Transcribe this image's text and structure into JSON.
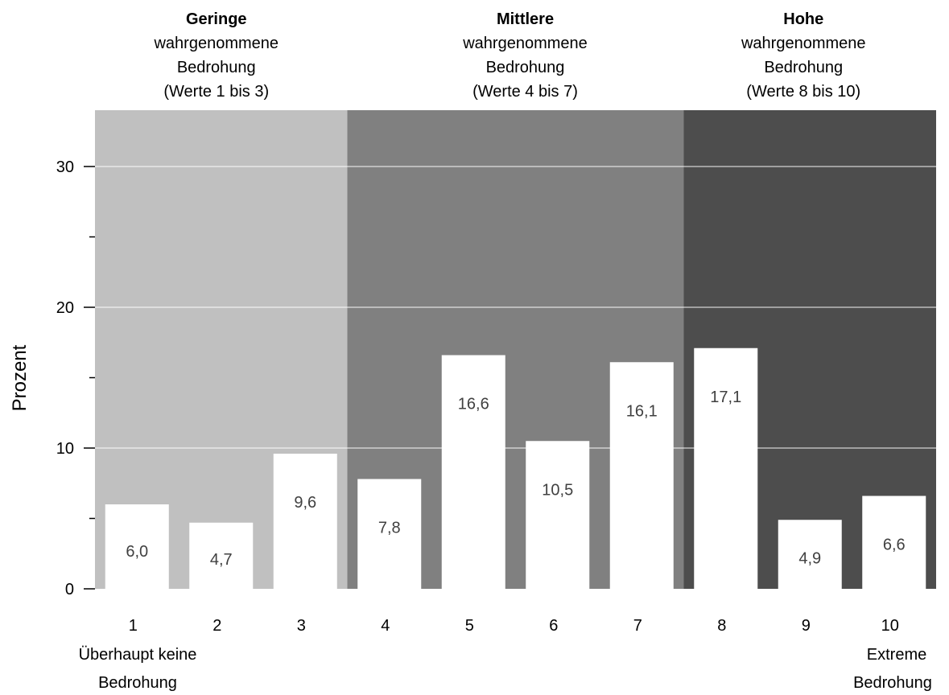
{
  "chart_data": {
    "type": "bar",
    "categories": [
      "1",
      "2",
      "3",
      "4",
      "5",
      "6",
      "7",
      "8",
      "9",
      "10"
    ],
    "values": [
      6.0,
      4.7,
      9.6,
      7.8,
      16.6,
      10.5,
      16.1,
      17.1,
      4.9,
      6.6
    ],
    "value_labels": [
      "6,0",
      "4,7",
      "9,6",
      "7,8",
      "16,6",
      "10,5",
      "16,1",
      "17,1",
      "4,9",
      "6,6"
    ],
    "ylabel": "Prozent",
    "yticks": [
      "0",
      "10",
      "20",
      "30"
    ],
    "ylim": [
      0,
      34
    ],
    "grid": true,
    "x_end_labels": {
      "left": [
        "Überhaupt keine",
        "Bedrohung"
      ],
      "right": [
        "Extreme",
        "Bedrohung"
      ]
    },
    "groups": [
      {
        "title": "Geringe",
        "lines": [
          "wahrgenommene",
          "Bedrohung",
          "(Werte 1 bis 3)"
        ],
        "from": 1,
        "to": 3,
        "color": "#c0c0c0"
      },
      {
        "title": "Mittlere",
        "lines": [
          "wahrgenommene",
          "Bedrohung",
          "(Werte 4 bis 7)"
        ],
        "from": 4,
        "to": 7,
        "color": "#808080"
      },
      {
        "title": "Hohe",
        "lines": [
          "wahrgenommene",
          "Bedrohung",
          "(Werte 8 bis 10)"
        ],
        "from": 8,
        "to": 10,
        "color": "#4d4d4d"
      }
    ],
    "bar_color": "#ffffff",
    "label_color": "#404040"
  }
}
